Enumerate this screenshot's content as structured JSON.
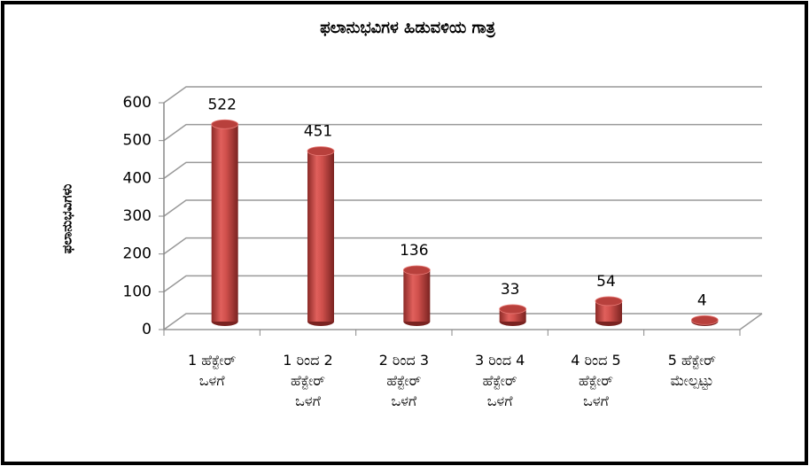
{
  "chart_data": {
    "type": "bar3d",
    "title": "ಫಲಾನುಭವಿಗಳ ಹಿಡುವಳಿಯ ಗಾತ್ರ",
    "y_label": "ಫಲಾನುಭವಿಗಳು",
    "categories": [
      "1 ಹೆಕ್ಟೇರ್\nಒಳಗೆ",
      "1 ರಿಂದ 2\nಹೆಕ್ಟೇರ್\nಒಳಗೆ",
      "2 ರಿಂದ 3\nಹೆಕ್ಟೇರ್\nಒಳಗೆ",
      "3 ರಿಂದ 4\nಹೆಕ್ಟೇರ್\nಒಳಗೆ",
      "4 ರಿಂದ 5\nಹೆಕ್ಟೇರ್\nಒಳಗೆ",
      "5 ಹೆಕ್ಟೇರ್\nಮೇಲ್ಪಟ್ಟು"
    ],
    "values": [
      522,
      451,
      136,
      33,
      54,
      4
    ],
    "color": "#c0504d",
    "ylim": [
      0,
      600
    ],
    "yticks": [
      0,
      100,
      200,
      300,
      400,
      500,
      600
    ],
    "grid": true
  }
}
